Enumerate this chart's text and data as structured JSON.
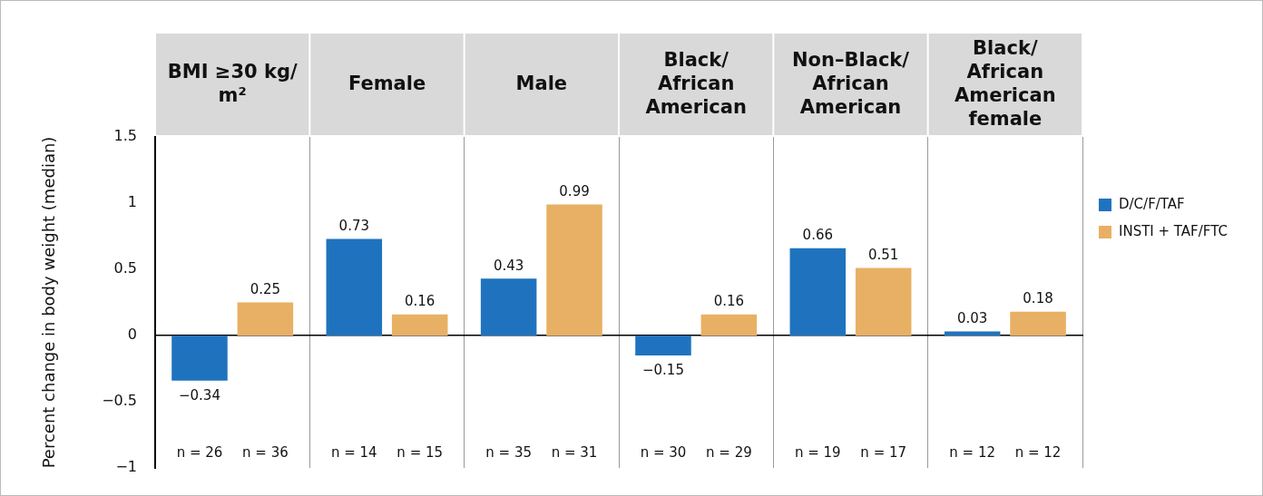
{
  "chart_data": {
    "type": "bar",
    "ylabel": "Percent change in body weight (median)",
    "categories": [
      "BMI ≥30 kg/m²",
      "Female",
      "Male",
      "Black/African American",
      "Non–Black/African American",
      "Black/African American female"
    ],
    "series": [
      {
        "name": "D/C/F/TAF",
        "color": "#1f73be",
        "values": [
          -0.34,
          0.73,
          0.43,
          -0.15,
          0.66,
          0.03
        ],
        "value_labels": [
          "−0.34",
          "0.73",
          "0.43",
          "−0.15",
          "0.66",
          "0.03"
        ]
      },
      {
        "name": "INSTI + TAF/FTC",
        "color": "#e8b064",
        "values": [
          0.25,
          0.16,
          0.99,
          0.16,
          0.51,
          0.18
        ],
        "value_labels": [
          "0.25",
          "0.16",
          "0.99",
          "0.16",
          "0.51",
          "0.18"
        ]
      }
    ],
    "ylim": [
      -1,
      1.5
    ],
    "yticks": [
      {
        "value": -1,
        "label": "−1"
      },
      {
        "value": -0.5,
        "label": "−0.5"
      },
      0,
      0.5,
      1,
      1.5
    ],
    "grid": "x",
    "legend": "right",
    "annotations": [
      "n = 26",
      "n = 36",
      "n = 14",
      "n = 15",
      "n = 35",
      "n = 31",
      "n = 30",
      "n = 29",
      "n = 19",
      "n = 17",
      "n = 12",
      "n = 12"
    ]
  }
}
